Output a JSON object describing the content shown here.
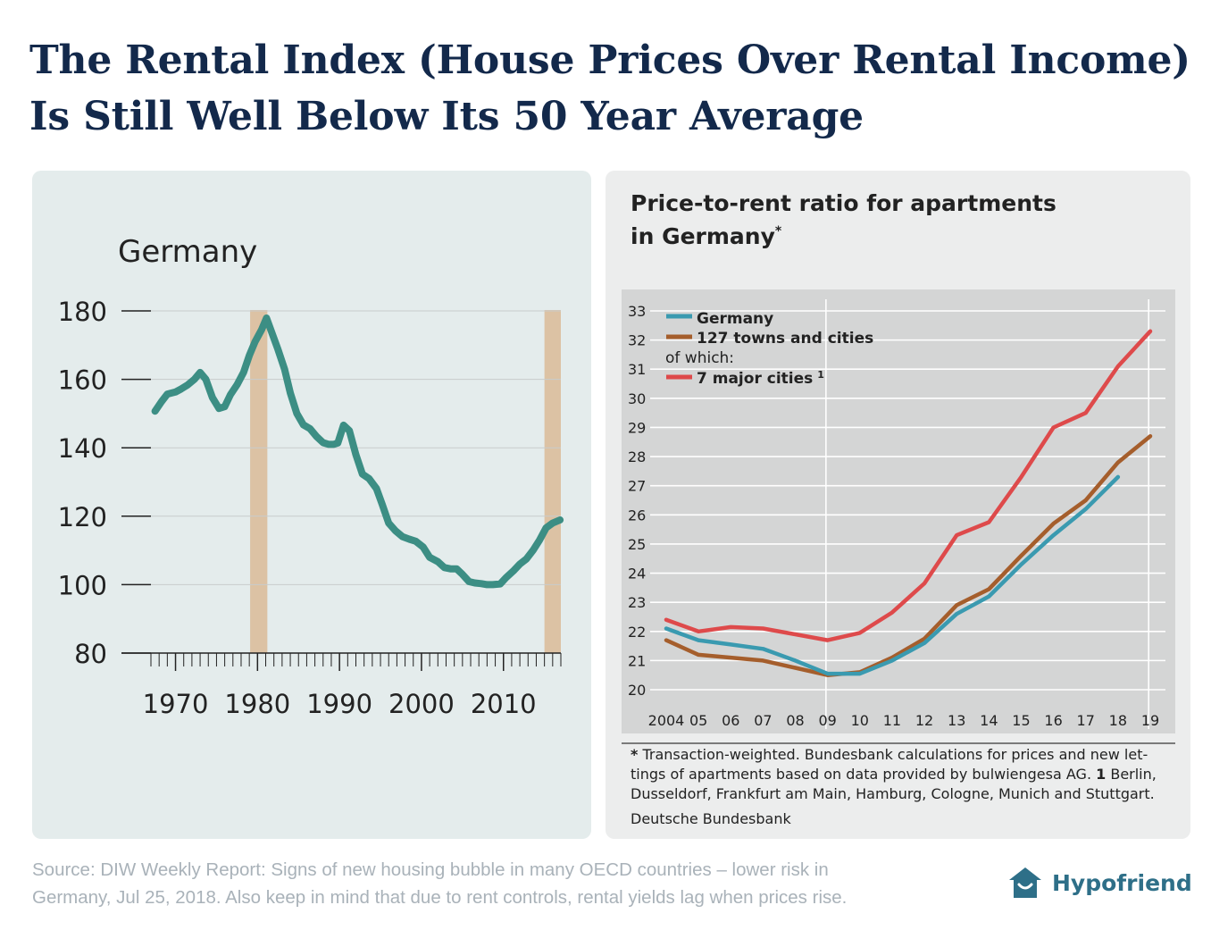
{
  "header": {
    "title_line1": "The Rental Index (House Prices Over Rental Income)",
    "title_line2": "Is Still Well Below Its 50 Year Average"
  },
  "chart_data": [
    {
      "type": "line",
      "title": "Germany",
      "xlabel": "",
      "ylabel": "",
      "xlim": [
        1967,
        2017
      ],
      "ylim": [
        80,
        180
      ],
      "yticks": [
        80,
        100,
        120,
        140,
        160,
        180
      ],
      "xticks": [
        1970,
        1980,
        1990,
        2000,
        2010
      ],
      "ytick_labels": [
        "80",
        "100",
        "120",
        "140",
        "160",
        "180"
      ],
      "xtick_labels": [
        "1970",
        "1980",
        "1990",
        "2000",
        "2010"
      ],
      "shaded_periods": [
        [
          1979.1,
          1981.2
        ],
        [
          2015.0,
          2017.0
        ]
      ],
      "colors": {
        "line": "#3c8e84",
        "shade": "#dcc2a4",
        "grid": "#c8cccc",
        "text": "#222222"
      },
      "series": [
        {
          "name": "Germany",
          "x": [
            1967.5,
            1968.3,
            1969,
            1970,
            1970.7,
            1971.5,
            1972.3,
            1973,
            1973.7,
            1974.5,
            1975.3,
            1976,
            1976.7,
            1977.5,
            1978.3,
            1979,
            1979.7,
            1980.5,
            1981.1,
            1981.7,
            1982.5,
            1983.3,
            1984,
            1984.8,
            1985.6,
            1986.4,
            1987.2,
            1988,
            1988.7,
            1989.3,
            1989.8,
            1990.5,
            1991.2,
            1992,
            1992.8,
            1993.6,
            1994.5,
            1995.2,
            1996,
            1996.8,
            1997.7,
            1998.5,
            1999.3,
            2000.2,
            2001,
            2002,
            2002.8,
            2003.6,
            2004.3,
            2005,
            2005.8,
            2006.5,
            2007.3,
            2008,
            2008.7,
            2009.6,
            2010.3,
            2011.2,
            2012,
            2012.8,
            2013.6,
            2014.4,
            2015.2,
            2016,
            2016.9
          ],
          "values": [
            150.7,
            153.5,
            155.7,
            156.3,
            157.2,
            158.4,
            160.0,
            162.0,
            160.0,
            154.7,
            151.5,
            152.0,
            155.5,
            158.4,
            162.0,
            167.0,
            171.0,
            174.5,
            177.9,
            174.0,
            168.7,
            163.0,
            156.0,
            150.0,
            146.7,
            145.6,
            143.3,
            141.5,
            141.0,
            141.0,
            141.4,
            146.6,
            145.0,
            138.0,
            132.3,
            131.0,
            128.1,
            123.5,
            118.0,
            115.8,
            114.0,
            113.3,
            112.7,
            111.0,
            108.0,
            106.7,
            105.0,
            104.6,
            104.6,
            103.0,
            100.9,
            100.5,
            100.3,
            100.0,
            100.0,
            100.2,
            102.0,
            104.0,
            106.0,
            107.5,
            110.0,
            113.0,
            116.6,
            118.0,
            118.9
          ]
        }
      ]
    },
    {
      "type": "line",
      "title": "Price-to-rent ratio for apartments in Germany*",
      "xlabel": "",
      "ylabel": "",
      "categories": [
        "2004",
        "05",
        "06",
        "07",
        "08",
        "09",
        "10",
        "11",
        "12",
        "13",
        "14",
        "15",
        "16",
        "17",
        "18",
        "19"
      ],
      "ylim": [
        20,
        33
      ],
      "yticks": [
        20,
        21,
        22,
        23,
        24,
        25,
        26,
        27,
        28,
        29,
        30,
        31,
        32,
        33
      ],
      "ytick_labels": [
        "20",
        "21",
        "22",
        "23",
        "24",
        "25",
        "26",
        "27",
        "28",
        "29",
        "30",
        "31",
        "32",
        "33"
      ],
      "legend": {
        "germany": "Germany",
        "towns": "127 towns and cities",
        "of_which": "of which:",
        "major": "7 major cities",
        "major_sup": "1"
      },
      "colors": {
        "germany": "#3a9ab0",
        "towns": "#a55e2c",
        "major": "#de4a4b",
        "plot_bg": "#d4d5d5",
        "text": "#222222"
      },
      "series": [
        {
          "name": "Germany",
          "values": [
            22.1,
            21.7,
            21.55,
            21.4,
            21.0,
            20.55,
            20.55,
            21.0,
            21.6,
            22.6,
            23.2,
            24.3,
            25.3,
            26.2,
            27.3,
            null
          ]
        },
        {
          "name": "127 towns and cities",
          "values": [
            21.7,
            21.2,
            21.1,
            21.0,
            20.75,
            20.5,
            20.6,
            21.1,
            21.75,
            22.9,
            23.45,
            24.6,
            25.7,
            26.5,
            27.8,
            28.7
          ]
        },
        {
          "name": "7 major cities",
          "values": [
            22.4,
            22.0,
            22.15,
            22.1,
            21.9,
            21.7,
            21.95,
            22.65,
            23.65,
            25.3,
            25.75,
            27.3,
            29.0,
            29.5,
            31.1,
            32.3
          ]
        }
      ]
    }
  ],
  "right_panel": {
    "title_line1": "Price-to-rent ratio for apartments",
    "title_line2": "in Germany",
    "title_sup": "*",
    "footnote_star": "*",
    "footnote_line1": " Transaction-weighted. Bundesbank calculations for prices and new let-",
    "footnote_line2a": "tings of apartments based on data provided by bulwiengesa AG. ",
    "footnote_line2b": "1",
    "footnote_line2c": " Berlin,",
    "footnote_line3": "Dusseldorf, Frankfurt am Main, Hamburg, Cologne, Munich and Stuttgart.",
    "source": "Deutsche Bundesbank"
  },
  "footer": {
    "source_line1": "Source: DIW Weekly Report: Signs of new housing bubble in many OECD countries – lower risk in",
    "source_line2": "Germany, Jul 25, 2018. Also keep in mind that due to rent controls, rental yields lag when prices rise.",
    "brand_name": "Hypofriend",
    "brand_icon": "house-icon",
    "brand_color": "#2e6f88"
  }
}
